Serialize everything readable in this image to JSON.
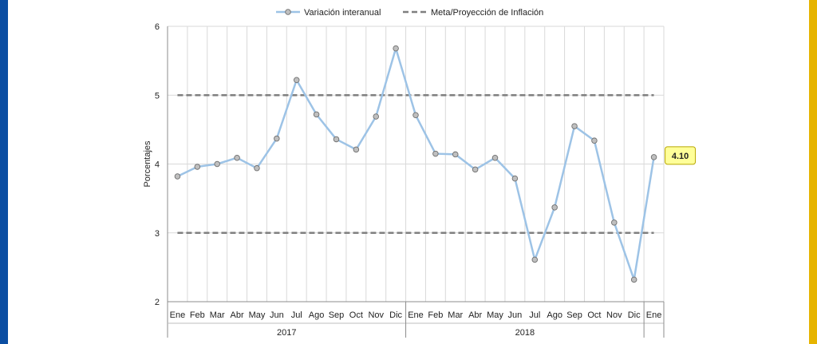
{
  "colors": {
    "stripe_left": "#0b4ea2",
    "stripe_right": "#e6b400",
    "series_line": "#9dc3e6",
    "marker_fill": "#bfbfbf",
    "marker_stroke": "#6f6f6f",
    "target_line": "#7f7f7f",
    "grid": "#d9d9d9",
    "callout_fill": "#ffff99",
    "callout_stroke": "#b8a600"
  },
  "chart_data": {
    "type": "line",
    "title": "",
    "xlabel": "",
    "ylabel": "Porcentajes",
    "ylim": [
      2,
      6
    ],
    "yticks": [
      2,
      3,
      4,
      5,
      6
    ],
    "grid": true,
    "legend_position": "top",
    "categories": [
      "Ene",
      "Feb",
      "Mar",
      "Abr",
      "May",
      "Jun",
      "Jul",
      "Ago",
      "Sep",
      "Oct",
      "Nov",
      "Dic",
      "Ene",
      "Feb",
      "Mar",
      "Abr",
      "May",
      "Jun",
      "Jul",
      "Ago",
      "Sep",
      "Oct",
      "Nov",
      "Dic",
      "Ene"
    ],
    "year_groups": [
      {
        "label": "2017",
        "start": 0,
        "count": 12
      },
      {
        "label": "2018",
        "start": 12,
        "count": 12
      },
      {
        "label": "",
        "start": 24,
        "count": 1
      }
    ],
    "series": [
      {
        "name": "Variación interanual",
        "style": "solid-with-markers",
        "values": [
          3.82,
          3.96,
          4.0,
          4.09,
          3.94,
          4.37,
          5.22,
          4.72,
          4.36,
          4.21,
          4.69,
          5.68,
          4.71,
          4.15,
          4.14,
          3.92,
          4.09,
          3.79,
          2.61,
          3.37,
          4.55,
          4.34,
          3.15,
          2.32,
          4.1
        ]
      },
      {
        "name": "Meta/Proyección de Inflación",
        "style": "dashed",
        "bands": [
          5,
          3
        ]
      }
    ],
    "annotations": [
      {
        "label": "4.10",
        "index": 24,
        "value": 4.1
      }
    ]
  }
}
